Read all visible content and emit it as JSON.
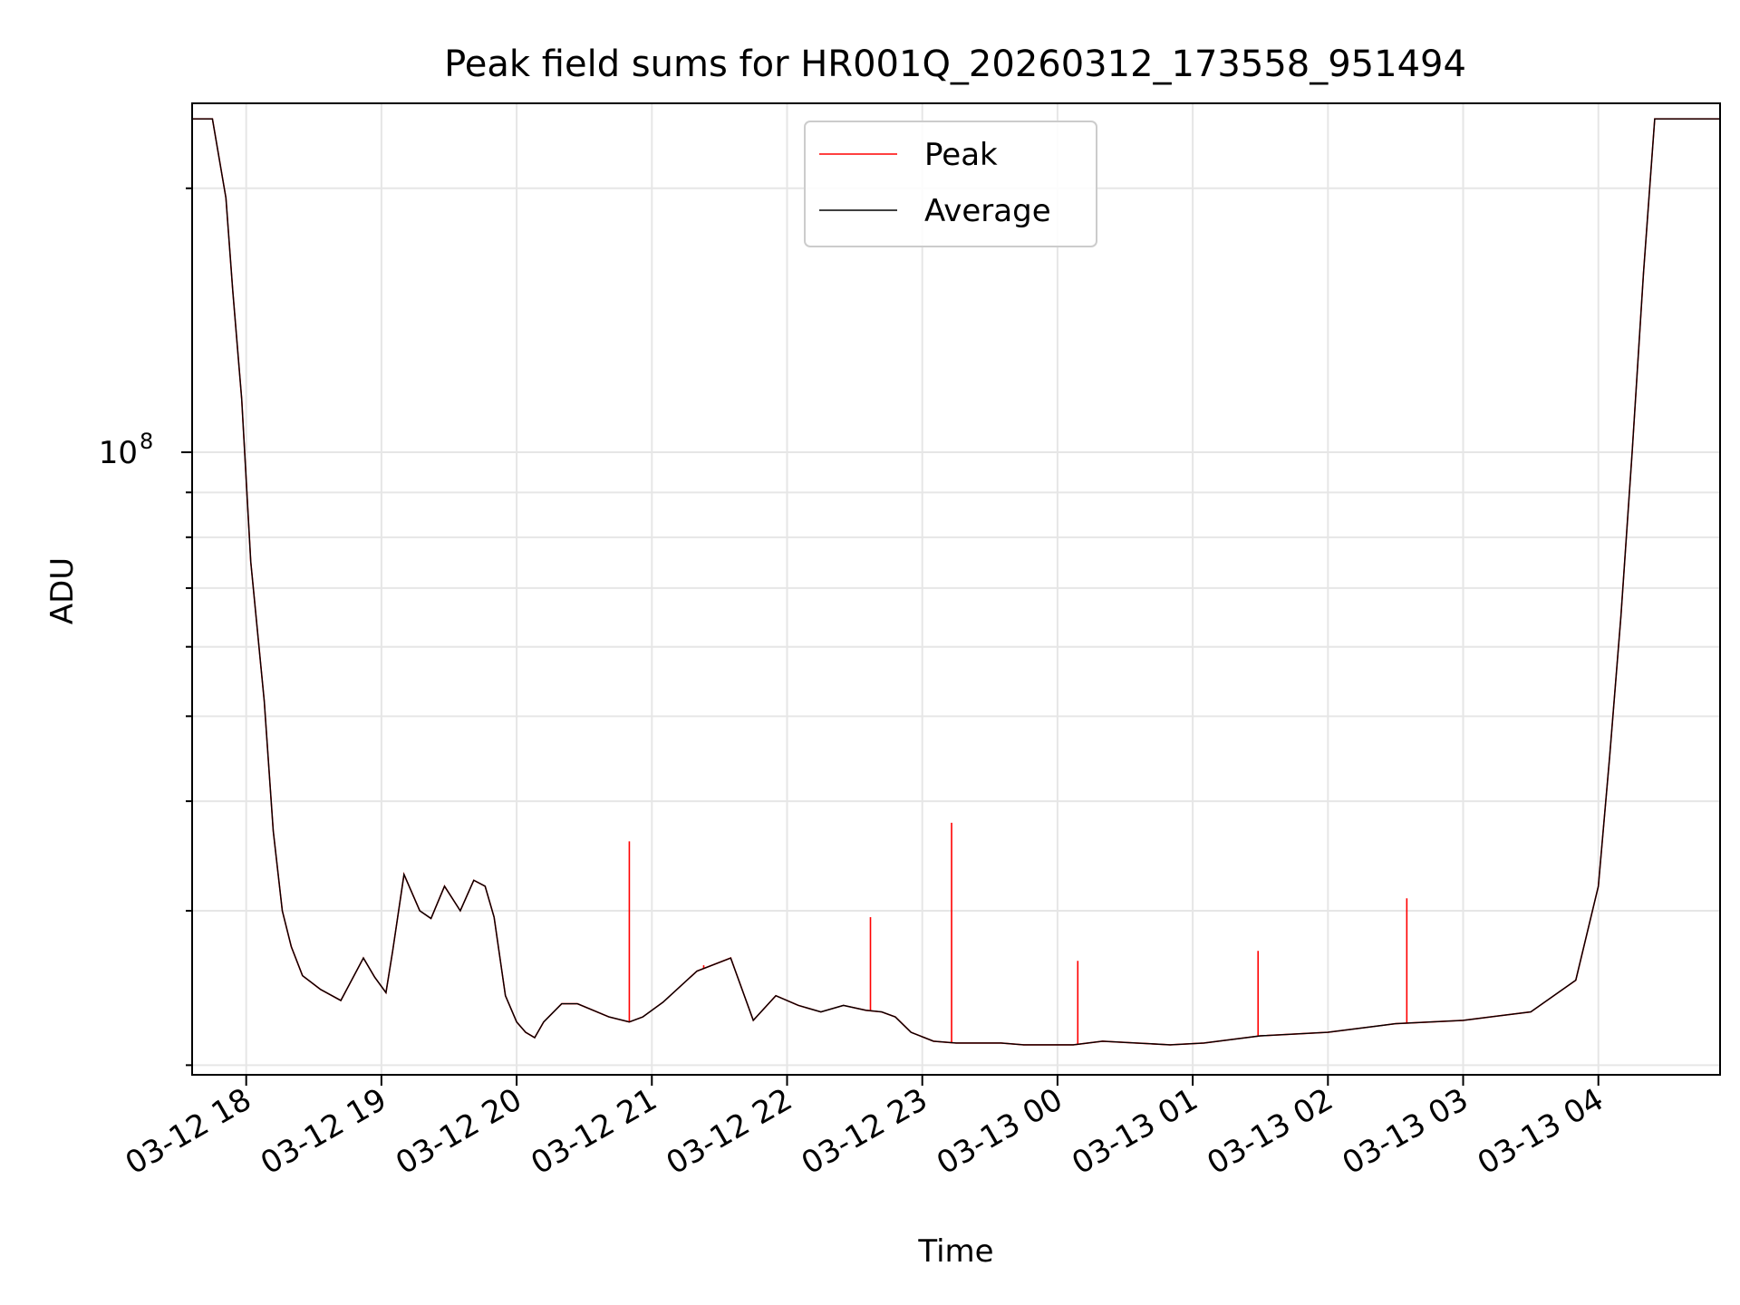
{
  "chart_data": {
    "type": "line",
    "title": "Peak field sums for HR001Q_20260312_173558_951494",
    "xlabel": "Time",
    "ylabel": "ADU",
    "yscale": "log",
    "grid": true,
    "legend_position": "top-center",
    "xlim": [
      "2026-03-12 17:36",
      "2026-03-13 04:54"
    ],
    "ylim": [
      19500000,
      250000000
    ],
    "x_ticks": [
      "03-12 18",
      "03-12 19",
      "03-12 20",
      "03-12 21",
      "03-12 22",
      "03-12 23",
      "03-13 00",
      "03-13 01",
      "03-13 02",
      "03-13 03",
      "03-13 04"
    ],
    "y_tick_label": {
      "base": "10",
      "exponent": "8",
      "value": 100000000
    },
    "series": [
      {
        "name": "Peak",
        "color": "#ff0000",
        "x": [
          "2026-03-12 17:36",
          "2026-03-12 17:45",
          "2026-03-12 17:51",
          "2026-03-12 17:54",
          "2026-03-12 17:58",
          "2026-03-12 18:02",
          "2026-03-12 18:08",
          "2026-03-12 18:12",
          "2026-03-12 18:16",
          "2026-03-12 18:20",
          "2026-03-12 18:25",
          "2026-03-12 18:33",
          "2026-03-12 18:42",
          "2026-03-12 18:52",
          "2026-03-12 18:57",
          "2026-03-12 19:02",
          "2026-03-12 19:05",
          "2026-03-12 19:10",
          "2026-03-12 19:17",
          "2026-03-12 19:22",
          "2026-03-12 19:28",
          "2026-03-12 19:35",
          "2026-03-12 19:41",
          "2026-03-12 19:46",
          "2026-03-12 19:50",
          "2026-03-12 19:55",
          "2026-03-12 20:00",
          "2026-03-12 20:04",
          "2026-03-12 20:08",
          "2026-03-12 20:12",
          "2026-03-12 20:20",
          "2026-03-12 20:27",
          "2026-03-12 20:41",
          "2026-03-12 20:50",
          "2026-03-12 20:56",
          "2026-03-12 21:05",
          "2026-03-12 21:20",
          "2026-03-12 21:35",
          "2026-03-12 21:45",
          "2026-03-12 21:55",
          "2026-03-12 22:05",
          "2026-03-12 22:15",
          "2026-03-12 22:25",
          "2026-03-12 22:35",
          "2026-03-12 22:42",
          "2026-03-12 22:48",
          "2026-03-12 22:55",
          "2026-03-12 23:05",
          "2026-03-12 23:15",
          "2026-03-12 23:25",
          "2026-03-12 23:35",
          "2026-03-12 23:45",
          "2026-03-12 23:55",
          "2026-03-13 00:07",
          "2026-03-13 00:20",
          "2026-03-13 00:35",
          "2026-03-13 00:50",
          "2026-03-13 01:05",
          "2026-03-13 01:30",
          "2026-03-13 02:00",
          "2026-03-13 02:30",
          "2026-03-13 03:00",
          "2026-03-13 03:30",
          "2026-03-13 03:50",
          "2026-03-13 04:00",
          "2026-03-13 04:05",
          "2026-03-13 04:10",
          "2026-03-13 04:15",
          "2026-03-13 04:20",
          "2026-03-13 04:25",
          "2026-03-13 04:30",
          "2026-03-13 04:35",
          "2026-03-13 04:40",
          "2026-03-13 04:46",
          "2026-03-13 04:54"
        ],
        "y": [
          240000000,
          240000000,
          195000000,
          153000000,
          115000000,
          75000000,
          52000000,
          37000000,
          30000000,
          27300000,
          25300000,
          24400000,
          23700000,
          26500000,
          25200000,
          24200000,
          27000000,
          33000000,
          30000000,
          29400000,
          32000000,
          30000000,
          32500000,
          32000000,
          29500000,
          24000000,
          22400000,
          21800000,
          21500000,
          22400000,
          23500000,
          23500000,
          22700000,
          22400000,
          22700000,
          23600000,
          25600000,
          26500000,
          22500000,
          24000000,
          23400000,
          23000000,
          23400000,
          23100000,
          23000000,
          22700000,
          21800000,
          21300000,
          21200000,
          21200000,
          21200000,
          21100000,
          21100000,
          21100000,
          21300000,
          21200000,
          21100000,
          21200000,
          21600000,
          21800000,
          22300000,
          22500000,
          23000000,
          25000000,
          32000000,
          45000000,
          65000000,
          100000000,
          160000000,
          240000000,
          240000000,
          240000000,
          240000000,
          240000000,
          240000000
        ]
      },
      {
        "name": "Average",
        "color": "#000000",
        "x": [
          "2026-03-12 17:36",
          "2026-03-12 17:45",
          "2026-03-12 17:51",
          "2026-03-12 17:54",
          "2026-03-12 17:58",
          "2026-03-12 18:02",
          "2026-03-12 18:08",
          "2026-03-12 18:12",
          "2026-03-12 18:16",
          "2026-03-12 18:20",
          "2026-03-12 18:25",
          "2026-03-12 18:33",
          "2026-03-12 18:42",
          "2026-03-12 18:52",
          "2026-03-12 18:57",
          "2026-03-12 19:02",
          "2026-03-12 19:05",
          "2026-03-12 19:10",
          "2026-03-12 19:17",
          "2026-03-12 19:22",
          "2026-03-12 19:28",
          "2026-03-12 19:35",
          "2026-03-12 19:41",
          "2026-03-12 19:46",
          "2026-03-12 19:50",
          "2026-03-12 19:55",
          "2026-03-12 20:00",
          "2026-03-12 20:04",
          "2026-03-12 20:08",
          "2026-03-12 20:12",
          "2026-03-12 20:20",
          "2026-03-12 20:27",
          "2026-03-12 20:41",
          "2026-03-12 20:50",
          "2026-03-12 20:56",
          "2026-03-12 21:05",
          "2026-03-12 21:20",
          "2026-03-12 21:35",
          "2026-03-12 21:45",
          "2026-03-12 21:55",
          "2026-03-12 22:05",
          "2026-03-12 22:15",
          "2026-03-12 22:25",
          "2026-03-12 22:35",
          "2026-03-12 22:42",
          "2026-03-12 22:48",
          "2026-03-12 22:55",
          "2026-03-12 23:05",
          "2026-03-12 23:15",
          "2026-03-12 23:25",
          "2026-03-12 23:35",
          "2026-03-12 23:45",
          "2026-03-12 23:55",
          "2026-03-13 00:07",
          "2026-03-13 00:20",
          "2026-03-13 00:35",
          "2026-03-13 00:50",
          "2026-03-13 01:05",
          "2026-03-13 01:30",
          "2026-03-13 02:00",
          "2026-03-13 02:30",
          "2026-03-13 03:00",
          "2026-03-13 03:30",
          "2026-03-13 03:50",
          "2026-03-13 04:00",
          "2026-03-13 04:05",
          "2026-03-13 04:10",
          "2026-03-13 04:15",
          "2026-03-13 04:20",
          "2026-03-13 04:25",
          "2026-03-13 04:30",
          "2026-03-13 04:35",
          "2026-03-13 04:40",
          "2026-03-13 04:46",
          "2026-03-13 04:54"
        ],
        "y": [
          240000000,
          240000000,
          195000000,
          153000000,
          115000000,
          75000000,
          52000000,
          37000000,
          30000000,
          27300000,
          25300000,
          24400000,
          23700000,
          26500000,
          25200000,
          24200000,
          27000000,
          33000000,
          30000000,
          29400000,
          32000000,
          30000000,
          32500000,
          32000000,
          29500000,
          24000000,
          22400000,
          21800000,
          21500000,
          22400000,
          23500000,
          23500000,
          22700000,
          22400000,
          22700000,
          23600000,
          25600000,
          26500000,
          22500000,
          24000000,
          23400000,
          23000000,
          23400000,
          23100000,
          23000000,
          22700000,
          21800000,
          21300000,
          21200000,
          21200000,
          21200000,
          21100000,
          21100000,
          21100000,
          21300000,
          21200000,
          21100000,
          21200000,
          21600000,
          21800000,
          22300000,
          22500000,
          23000000,
          25000000,
          32000000,
          45000000,
          65000000,
          100000000,
          160000000,
          240000000,
          240000000,
          240000000,
          240000000,
          240000000,
          240000000
        ]
      }
    ],
    "peak_spikes": [
      {
        "x": "2026-03-12 20:50",
        "y": 36000000
      },
      {
        "x": "2026-03-12 22:37",
        "y": 29500000
      },
      {
        "x": "2026-03-12 23:13",
        "y": 37800000
      },
      {
        "x": "2026-03-13 01:29",
        "y": 27000000
      },
      {
        "x": "2026-03-13 02:35",
        "y": 31000000
      },
      {
        "x": "2026-03-12 21:23",
        "y": 26000000
      },
      {
        "x": "2026-03-13 00:09",
        "y": 26300000
      }
    ]
  }
}
